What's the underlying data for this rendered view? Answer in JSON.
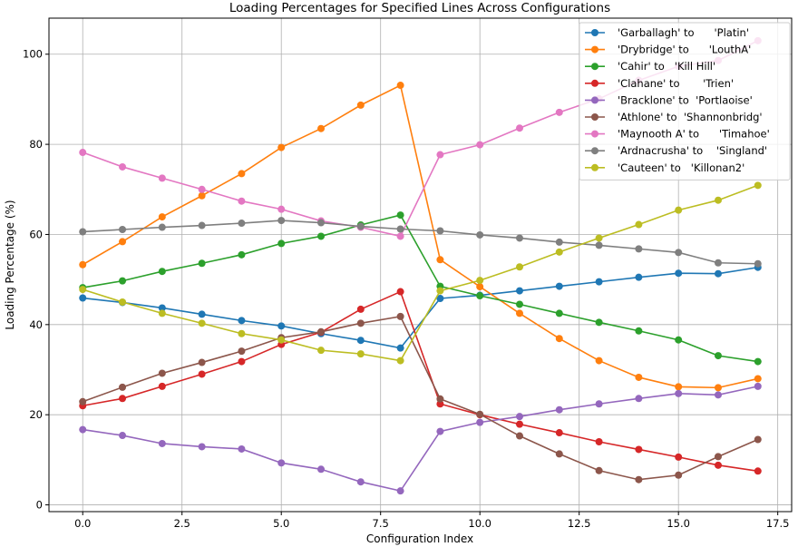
{
  "chart_data": {
    "type": "line",
    "title": "Loading Percentages for Specified Lines Across Configurations",
    "xlabel": "Configuration Index",
    "ylabel": "Loading Percentage (%)",
    "xlim": [
      -0.85,
      17.85
    ],
    "ylim": [
      -1.5,
      108
    ],
    "xticks": [
      0.0,
      2.5,
      5.0,
      7.5,
      10.0,
      12.5,
      15.0,
      17.5
    ],
    "xtick_labels": [
      "0.0",
      "2.5",
      "5.0",
      "7.5",
      "10.0",
      "12.5",
      "15.0",
      "17.5"
    ],
    "yticks": [
      0,
      20,
      40,
      60,
      80,
      100
    ],
    "ytick_labels": [
      "0",
      "20",
      "40",
      "60",
      "80",
      "100"
    ],
    "grid": true,
    "legend_position": "top-right",
    "x": [
      0,
      1,
      2,
      3,
      4,
      5,
      6,
      7,
      8,
      9,
      10,
      11,
      12,
      13,
      14,
      15,
      16,
      17
    ],
    "series": [
      {
        "name": "'Garballagh' to      'Platin'",
        "color": "#1f77b4",
        "values": [
          45.9,
          44.9,
          43.7,
          42.3,
          40.9,
          39.7,
          38.0,
          36.5,
          34.8,
          45.8,
          46.5,
          47.5,
          48.5,
          49.5,
          50.5,
          51.4,
          51.3,
          52.7
        ]
      },
      {
        "name": "'Drybridge' to      'LouthA'",
        "color": "#ff7f0e",
        "values": [
          53.3,
          58.4,
          63.9,
          68.6,
          73.5,
          79.3,
          83.5,
          88.7,
          93.1,
          54.4,
          48.4,
          42.5,
          36.9,
          32.0,
          28.3,
          26.2,
          26.0,
          28.0
        ]
      },
      {
        "name": "'Cahir' to   'Kill Hill'",
        "color": "#2ca02c",
        "values": [
          48.2,
          49.7,
          51.8,
          53.6,
          55.5,
          58.0,
          59.6,
          62.1,
          64.3,
          48.5,
          46.4,
          44.5,
          42.5,
          40.5,
          38.6,
          36.6,
          33.1,
          31.8
        ]
      },
      {
        "name": "'Clahane' to       'Trien'",
        "color": "#d62728",
        "values": [
          22.0,
          23.6,
          26.3,
          29.0,
          31.8,
          35.6,
          38.3,
          43.4,
          47.3,
          22.4,
          20.0,
          17.9,
          16.0,
          14.0,
          12.3,
          10.6,
          8.8,
          7.5
        ]
      },
      {
        "name": "'Bracklone' to  'Portlaoise'",
        "color": "#9467bd",
        "values": [
          16.7,
          15.4,
          13.6,
          12.9,
          12.4,
          9.3,
          7.9,
          5.1,
          3.1,
          16.3,
          18.3,
          19.6,
          21.1,
          22.4,
          23.6,
          24.7,
          24.4,
          26.3
        ]
      },
      {
        "name": "'Athlone' to  'Shannonbridg'",
        "color": "#8c564b",
        "values": [
          22.9,
          26.1,
          29.2,
          31.6,
          34.1,
          37.1,
          38.4,
          40.3,
          41.8,
          23.5,
          20.1,
          15.3,
          11.3,
          7.6,
          5.6,
          6.6,
          10.7,
          14.5
        ]
      },
      {
        "name": "'Maynooth A' to      'Timahoe'",
        "color": "#e377c2",
        "values": [
          78.2,
          75.0,
          72.5,
          70.0,
          67.4,
          65.6,
          63.0,
          61.6,
          59.6,
          77.7,
          79.9,
          83.6,
          87.1,
          90.1,
          94.2,
          97.3,
          98.6,
          103.0
        ]
      },
      {
        "name": "'Ardnacrusha' to    'Singland'",
        "color": "#7f7f7f",
        "values": [
          60.6,
          61.1,
          61.6,
          62.0,
          62.5,
          63.1,
          62.6,
          61.8,
          61.2,
          60.8,
          59.9,
          59.2,
          58.3,
          57.6,
          56.8,
          56.0,
          53.7,
          53.5
        ]
      },
      {
        "name": "'Cauteen' to   'Killonan2'",
        "color": "#bcbd22",
        "values": [
          47.8,
          45.0,
          42.5,
          40.3,
          38.0,
          36.6,
          34.3,
          33.5,
          32.0,
          47.5,
          49.8,
          52.8,
          56.1,
          59.2,
          62.2,
          65.4,
          67.6,
          70.9
        ]
      }
    ]
  }
}
